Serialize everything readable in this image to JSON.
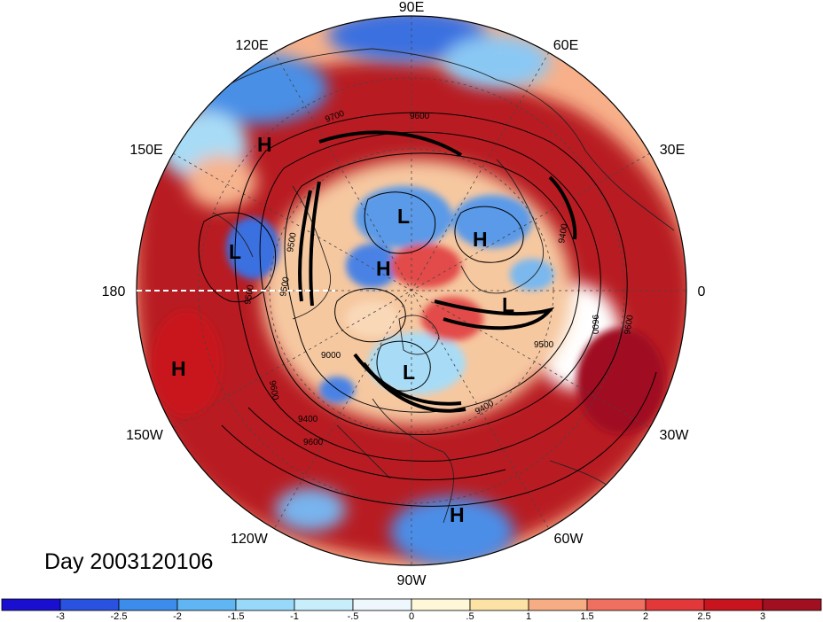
{
  "longitude_labels": [
    {
      "text": "90E",
      "angle_deg": 90
    },
    {
      "text": "60E",
      "angle_deg": 60
    },
    {
      "text": "30E",
      "angle_deg": 30
    },
    {
      "text": "0",
      "angle_deg": 0
    },
    {
      "text": "30W",
      "angle_deg": -30
    },
    {
      "text": "60W",
      "angle_deg": -60
    },
    {
      "text": "90W",
      "angle_deg": -90
    },
    {
      "text": "120W",
      "angle_deg": -120
    },
    {
      "text": "150W",
      "angle_deg": -150
    },
    {
      "text": "180",
      "angle_deg": 180
    },
    {
      "text": "150E",
      "angle_deg": 150
    },
    {
      "text": "120E",
      "angle_deg": 120
    }
  ],
  "pressure_centers": [
    {
      "text": "H",
      "id": "h-siberia"
    },
    {
      "text": "L",
      "id": "l-bering"
    },
    {
      "text": "H",
      "id": "h-pacific"
    },
    {
      "text": "L",
      "id": "l-arctic-asia"
    },
    {
      "text": "H",
      "id": "h-arctic"
    },
    {
      "text": "H",
      "id": "h-europe"
    },
    {
      "text": "L",
      "id": "l-atlantic"
    },
    {
      "text": "L",
      "id": "l-canada"
    },
    {
      "text": "H",
      "id": "h-caribbean"
    }
  ],
  "contour_labels": [
    "9700",
    "9600",
    "9500",
    "9500",
    "9400",
    "9600",
    "9500",
    "9600",
    "9400",
    "9600",
    "9400",
    "9500",
    "9600",
    "9000"
  ],
  "timestamp": "Day 2003120106",
  "colorbar": {
    "ticks": [
      "-3",
      "-2.5",
      "-2",
      "-1.5",
      "-1",
      "-.5",
      "0",
      ".5",
      "1",
      "1.5",
      "2",
      "2.5",
      "3"
    ],
    "colors": [
      "#1a0fd0",
      "#2a52e0",
      "#3c8cec",
      "#60b6f2",
      "#98d8f8",
      "#c8eefc",
      "#eef8fc",
      "#fef8d8",
      "#fde2a6",
      "#f7ad84",
      "#ef7060",
      "#e2383a",
      "#c8141e",
      "#a01020"
    ]
  }
}
